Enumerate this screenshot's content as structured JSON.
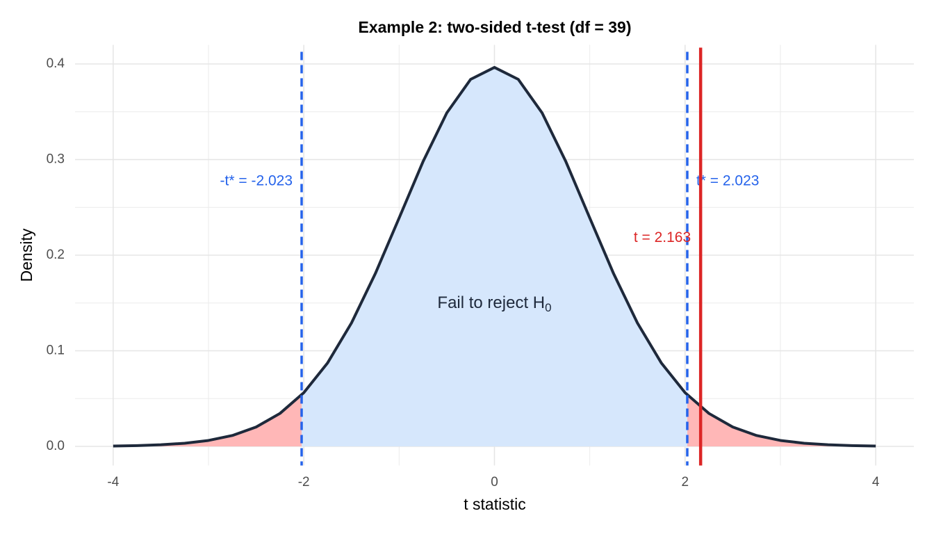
{
  "chart_data": {
    "type": "density",
    "title": "Example 2: two-sided t-test (df = 39)",
    "xlabel": "t statistic",
    "ylabel": "Density",
    "x": [
      -4,
      -3.75,
      -3.5,
      -3.25,
      -3,
      -2.75,
      -2.5,
      -2.25,
      -2,
      -1.75,
      -1.5,
      -1.25,
      -1,
      -0.75,
      -0.5,
      -0.25,
      0,
      0.25,
      0.5,
      0.75,
      1,
      1.25,
      1.5,
      1.75,
      2,
      2.25,
      2.5,
      2.75,
      3,
      3.25,
      3.5,
      3.75,
      4
    ],
    "values": [
      0.0004,
      0.0008,
      0.0017,
      0.0033,
      0.0062,
      0.0114,
      0.0203,
      0.0345,
      0.0562,
      0.0874,
      0.1291,
      0.1807,
      0.2389,
      0.2977,
      0.3488,
      0.3839,
      0.3964,
      0.3839,
      0.3488,
      0.2977,
      0.2389,
      0.1807,
      0.1291,
      0.0874,
      0.0562,
      0.0345,
      0.0203,
      0.0114,
      0.0062,
      0.0033,
      0.0017,
      0.0008,
      0.0004
    ],
    "critical_values": [
      -2.023,
      2.023
    ],
    "critical_labels": [
      "-t* = -2.023",
      "t* = 2.023"
    ],
    "t_observed": 2.163,
    "t_observed_label": "t = 2.163",
    "region_label": {
      "text": "Fail to reject H",
      "subscript": "0"
    },
    "xlim": [
      -4.4,
      4.4
    ],
    "xticks": [
      -4,
      -2,
      0,
      2,
      4
    ],
    "ylim": [
      -0.02,
      0.42
    ],
    "yticks": [
      0.0,
      0.1,
      0.2,
      0.3,
      0.4
    ],
    "grid": true,
    "colors": {
      "curve": "#1e293b",
      "accept": "#d6e7fc",
      "reject": "#ffb7b7",
      "critical": "#2563eb",
      "observed": "#dc2626"
    }
  }
}
